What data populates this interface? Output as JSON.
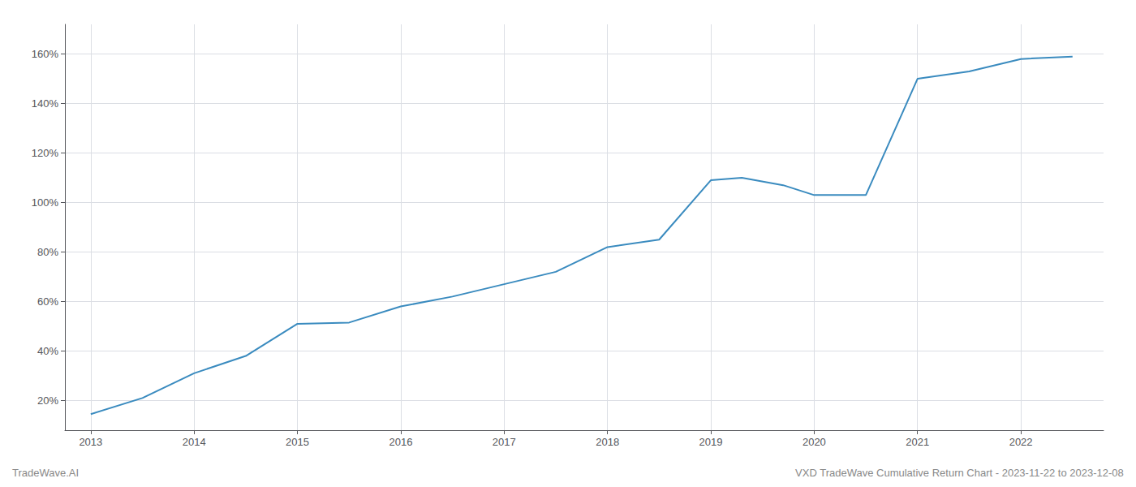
{
  "chart_data": {
    "type": "line",
    "title": "VXD TradeWave Cumulative Return Chart - 2023-11-22 to 2023-12-08",
    "annotations": [
      "TradeWave.AI"
    ],
    "x": [
      2013.0,
      2013.5,
      2014.0,
      2014.5,
      2015.0,
      2015.5,
      2016.0,
      2016.5,
      2017.0,
      2017.5,
      2018.0,
      2018.5,
      2019.0,
      2019.3,
      2019.7,
      2020.0,
      2020.5,
      2021.0,
      2021.5,
      2022.0,
      2022.5
    ],
    "values": [
      14.5,
      21,
      31,
      38,
      51,
      51.5,
      58,
      62,
      67,
      72,
      82,
      85,
      109,
      110,
      107,
      103,
      103,
      150,
      153,
      158,
      159
    ],
    "color": "#3a8bbf",
    "xlim": [
      2012.75,
      2022.8
    ],
    "xticks": [
      2013,
      2014,
      2015,
      2016,
      2017,
      2018,
      2019,
      2020,
      2021,
      2022
    ],
    "ylim": [
      8,
      172
    ],
    "yticks": [
      {
        "value": 20,
        "label": "20%"
      },
      {
        "value": 40,
        "label": "40%"
      },
      {
        "value": 60,
        "label": "60%"
      },
      {
        "value": 80,
        "label": "80%"
      },
      {
        "value": 100,
        "label": "100%"
      },
      {
        "value": 120,
        "label": "120%"
      },
      {
        "value": 140,
        "label": "140%"
      },
      {
        "value": 160,
        "label": "160%"
      }
    ],
    "grid": true
  }
}
